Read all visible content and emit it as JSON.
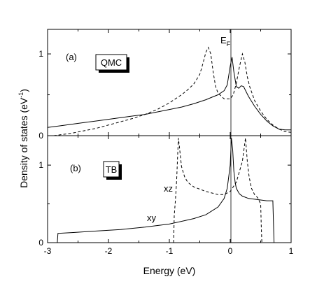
{
  "chart_data": [
    {
      "type": "line",
      "panel": "(a)",
      "box_label": "QMC",
      "annotation": "E",
      "annotation_subscript": "F",
      "ylabel": "Density of states  (eV",
      "ylabel_superscript": "-1",
      "ylabel_close": ")",
      "xlim": [
        -3,
        1
      ],
      "ylim": [
        0,
        1.3
      ],
      "yticks": [
        "0",
        "1"
      ],
      "fermi_level": 0,
      "series": [
        {
          "style": "solid",
          "x": [
            -3.0,
            -2.8,
            -2.6,
            -2.4,
            -2.2,
            -2.0,
            -1.8,
            -1.6,
            -1.4,
            -1.2,
            -1.0,
            -0.8,
            -0.6,
            -0.4,
            -0.3,
            -0.2,
            -0.1,
            -0.05,
            0.0,
            0.03,
            0.06,
            0.1,
            0.14,
            0.18,
            0.22,
            0.26,
            0.3,
            0.4,
            0.5,
            0.6,
            0.7,
            0.8,
            0.9,
            1.0
          ],
          "y": [
            0.1,
            0.12,
            0.14,
            0.16,
            0.18,
            0.2,
            0.22,
            0.24,
            0.26,
            0.29,
            0.32,
            0.35,
            0.39,
            0.44,
            0.47,
            0.5,
            0.55,
            0.62,
            0.85,
            0.96,
            0.78,
            0.6,
            0.58,
            0.61,
            0.6,
            0.54,
            0.48,
            0.36,
            0.26,
            0.18,
            0.12,
            0.08,
            0.07,
            0.07
          ]
        },
        {
          "style": "dashed",
          "x": [
            -2.9,
            -2.6,
            -2.4,
            -2.2,
            -2.0,
            -1.8,
            -1.6,
            -1.4,
            -1.2,
            -1.0,
            -0.8,
            -0.7,
            -0.6,
            -0.5,
            -0.45,
            -0.4,
            -0.36,
            -0.32,
            -0.28,
            -0.24,
            -0.2,
            -0.1,
            0.0,
            0.05,
            0.1,
            0.15,
            0.2,
            0.24,
            0.28,
            0.32,
            0.4,
            0.5,
            0.6,
            0.7,
            0.8,
            0.9,
            1.0
          ],
          "y": [
            0.0,
            0.03,
            0.06,
            0.09,
            0.13,
            0.17,
            0.21,
            0.26,
            0.32,
            0.4,
            0.5,
            0.56,
            0.63,
            0.75,
            0.88,
            1.02,
            1.08,
            1.0,
            0.78,
            0.6,
            0.52,
            0.45,
            0.45,
            0.5,
            0.64,
            0.84,
            1.0,
            0.9,
            0.72,
            0.6,
            0.43,
            0.3,
            0.2,
            0.13,
            0.08,
            0.05,
            0.04
          ]
        }
      ]
    },
    {
      "type": "line",
      "panel": "(b)",
      "box_label": "TB",
      "xlabel": "Energy  (eV)",
      "xlim": [
        -3,
        1
      ],
      "ylim": [
        0,
        1.38
      ],
      "xticks": [
        "-3",
        "-2",
        "-1",
        "0",
        "1"
      ],
      "yticks": [
        "0",
        "1"
      ],
      "fermi_level": 0,
      "series": [
        {
          "name": "xy",
          "style": "solid",
          "x": [
            -2.84,
            -2.83,
            -2.6,
            -2.2,
            -1.8,
            -1.4,
            -1.0,
            -0.6,
            -0.4,
            -0.2,
            -0.1,
            -0.05,
            0.0,
            0.02,
            0.04,
            0.06,
            0.08,
            0.1,
            0.15,
            0.2,
            0.3,
            0.4,
            0.5,
            0.6,
            0.68,
            0.7,
            0.72,
            1.0
          ],
          "y": [
            0.0,
            0.12,
            0.13,
            0.15,
            0.17,
            0.2,
            0.24,
            0.31,
            0.36,
            0.46,
            0.57,
            0.7,
            1.0,
            1.35,
            1.2,
            0.92,
            0.78,
            0.7,
            0.63,
            0.6,
            0.57,
            0.56,
            0.55,
            0.54,
            0.54,
            0.54,
            0.0,
            0.0
          ]
        },
        {
          "name": "xz",
          "style": "dashed",
          "x": [
            -0.93,
            -0.92,
            -0.9,
            -0.88,
            -0.86,
            -0.85,
            -0.83,
            -0.8,
            -0.75,
            -0.7,
            -0.6,
            -0.5,
            -0.4,
            -0.3,
            -0.2,
            -0.1,
            0.0,
            0.1,
            0.2,
            0.25,
            0.28,
            0.31,
            0.35,
            0.4,
            0.45,
            0.5,
            0.51,
            0.52
          ],
          "y": [
            0.0,
            0.35,
            0.55,
            0.8,
            1.2,
            1.35,
            1.2,
            0.98,
            0.85,
            0.78,
            0.72,
            0.69,
            0.66,
            0.64,
            0.62,
            0.62,
            0.66,
            0.78,
            1.05,
            1.35,
            1.05,
            0.85,
            0.7,
            0.62,
            0.58,
            0.5,
            0.2,
            0.0
          ]
        }
      ]
    }
  ]
}
